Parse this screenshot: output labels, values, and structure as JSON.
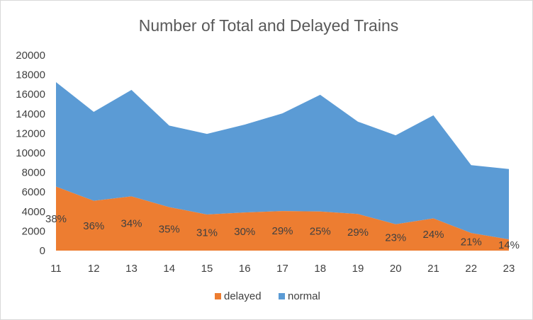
{
  "chart_data": {
    "type": "area",
    "stacked": true,
    "title": "Number of Total and Delayed Trains",
    "x": [
      "11",
      "12",
      "13",
      "14",
      "15",
      "16",
      "17",
      "18",
      "19",
      "20",
      "21",
      "22",
      "23"
    ],
    "series": [
      {
        "name": "delayed",
        "color": "#ed7d31",
        "values": [
          6550,
          5100,
          5550,
          4450,
          3700,
          3900,
          4050,
          4000,
          3750,
          2700,
          3300,
          1800,
          1150
        ]
      },
      {
        "name": "normal",
        "color": "#5b9bd5",
        "values": [
          10700,
          9100,
          10900,
          8350,
          8250,
          9000,
          10000,
          11950,
          9450,
          9100,
          10550,
          6950,
          7200
        ]
      }
    ],
    "data_labels": [
      "38%",
      "36%",
      "34%",
      "35%",
      "31%",
      "30%",
      "29%",
      "25%",
      "29%",
      "23%",
      "24%",
      "21%",
      "14%"
    ],
    "y_ticks": [
      "0",
      "2000",
      "4000",
      "6000",
      "8000",
      "10000",
      "12000",
      "14000",
      "16000",
      "18000",
      "20000"
    ],
    "ylim": [
      0,
      20000
    ],
    "grid": false,
    "legend_position": "bottom"
  }
}
